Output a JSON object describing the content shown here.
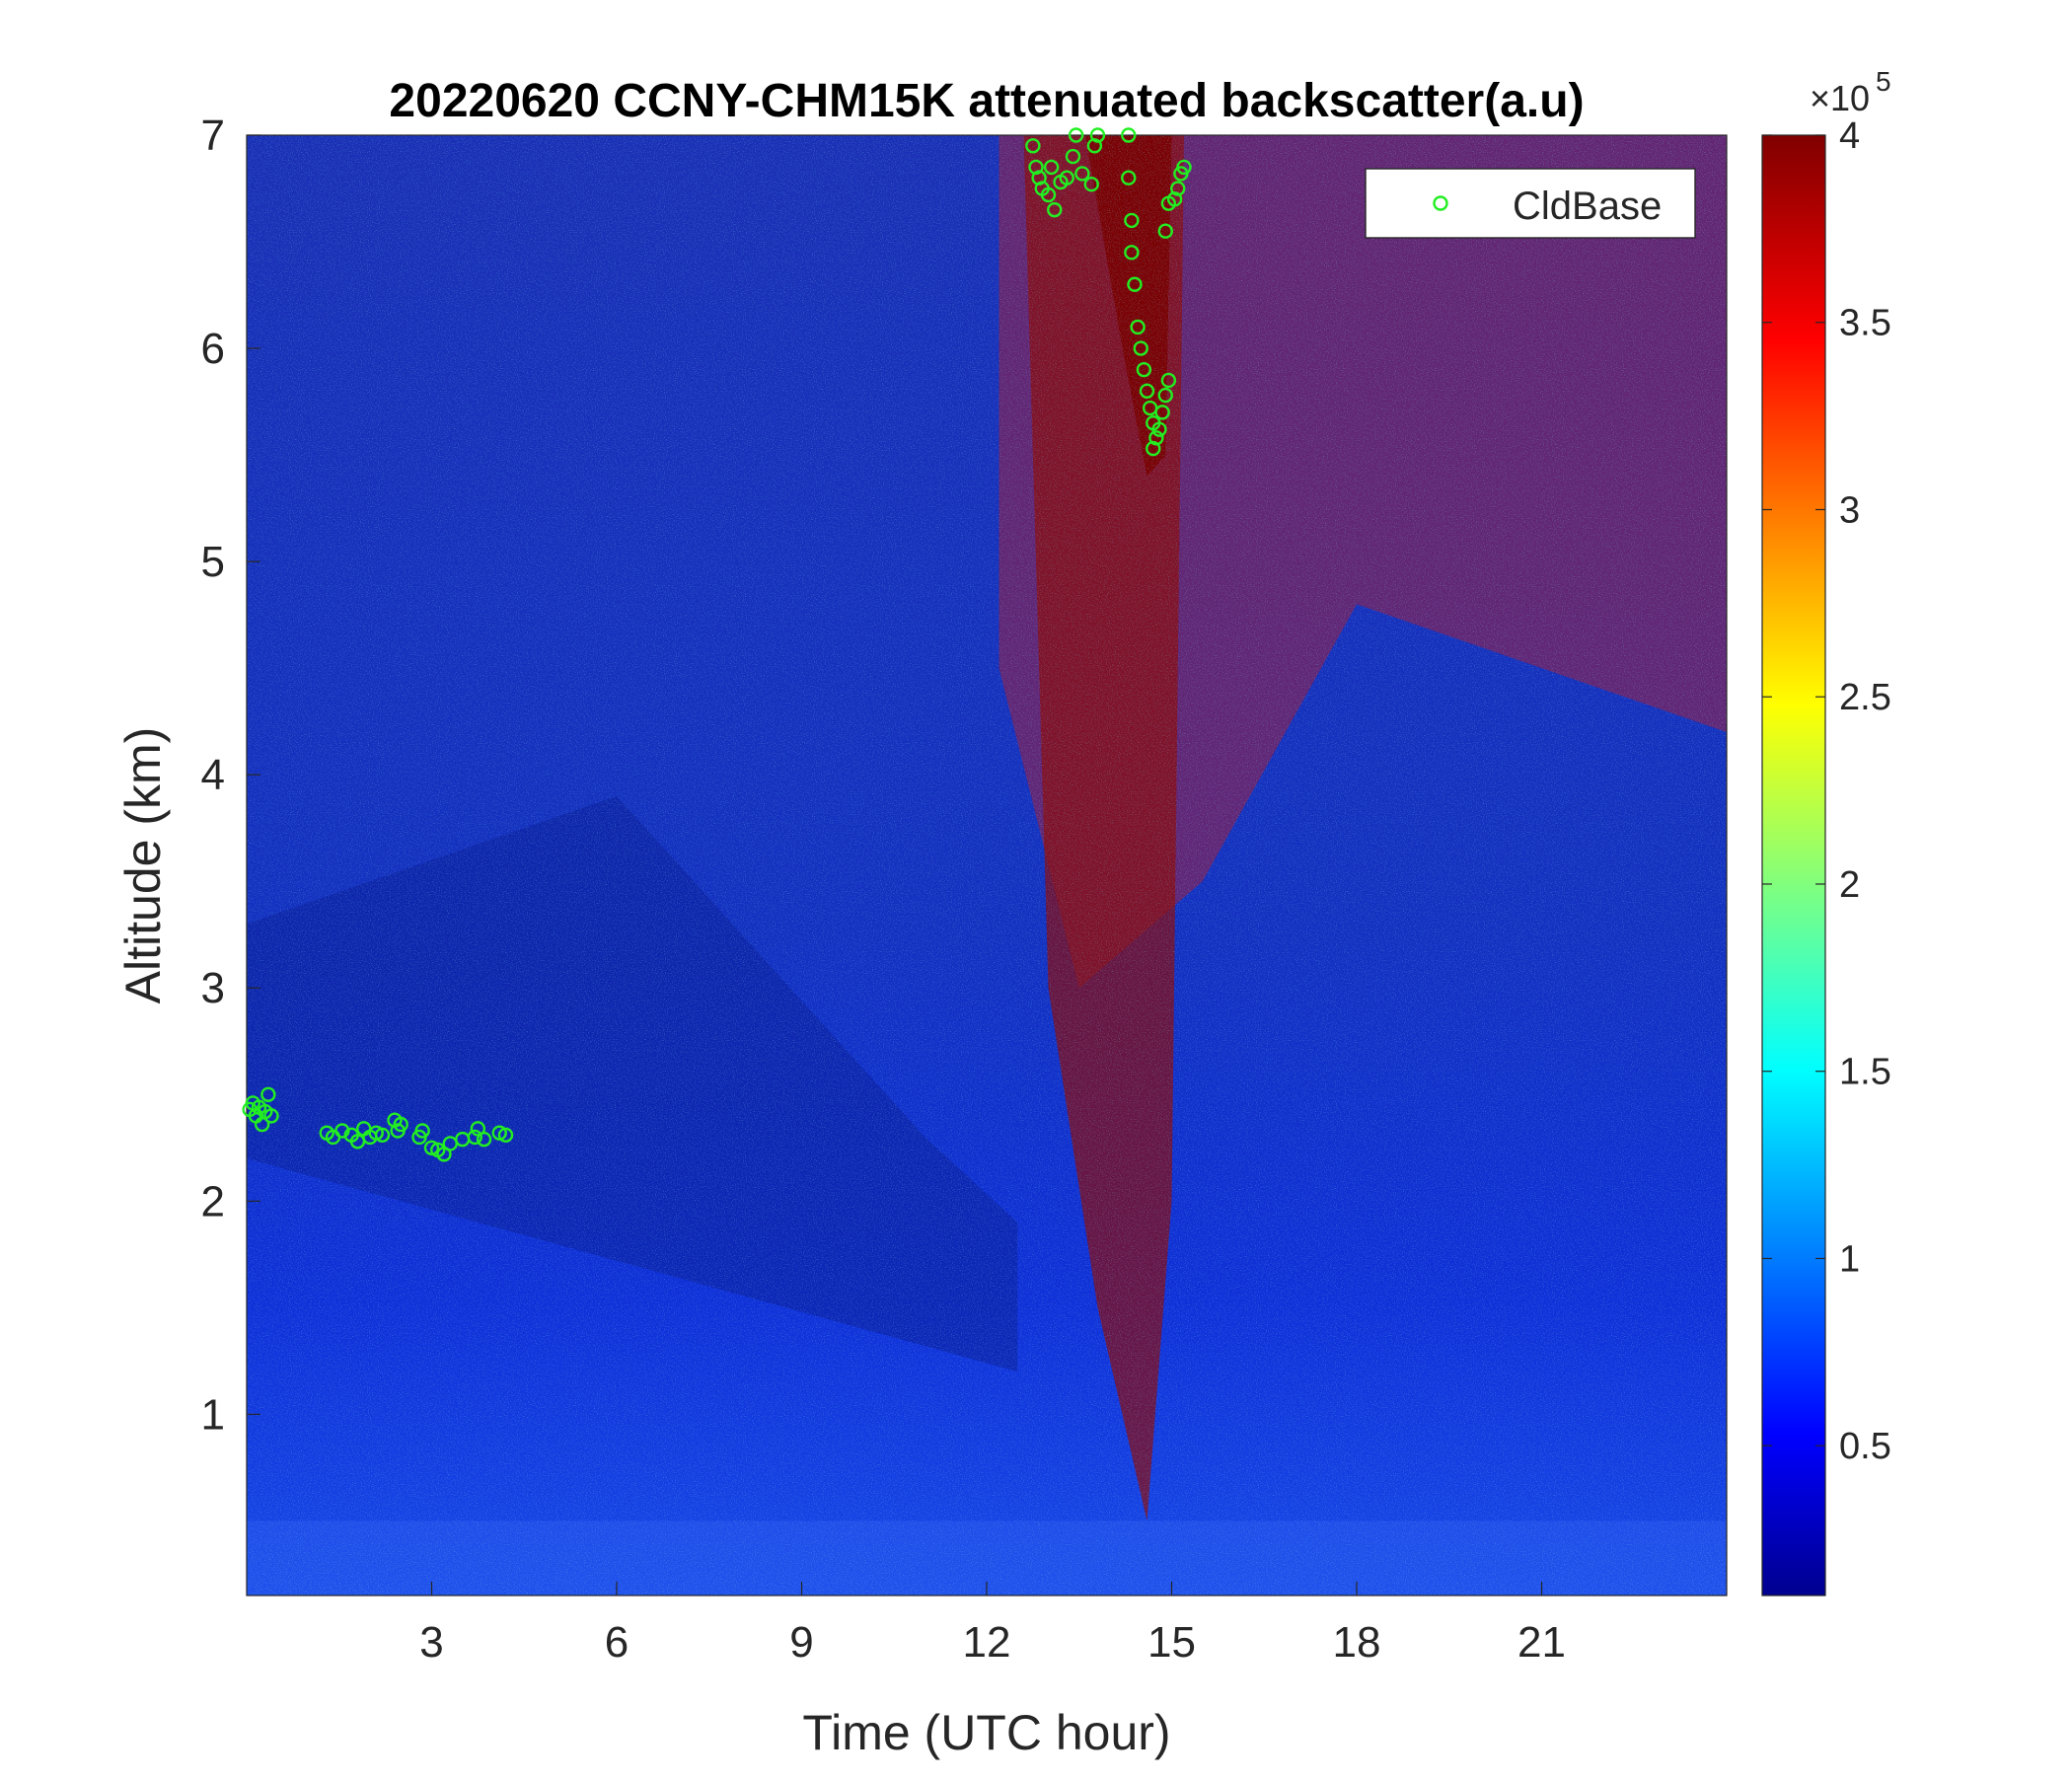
{
  "chart_data": {
    "type": "heatmap",
    "title": "20220620 CCNY-CHM15K attenuated backscatter(a.u)",
    "xlabel": "Time (UTC hour)",
    "ylabel": "Altitude (km)",
    "xlim": [
      0,
      24
    ],
    "ylim": [
      0.15,
      7
    ],
    "xticks": [
      3,
      6,
      9,
      12,
      15,
      18,
      21
    ],
    "yticks": [
      1,
      2,
      3,
      4,
      5,
      6,
      7
    ],
    "colorbar": {
      "colormap": "jet",
      "lim": [
        0.1,
        4
      ],
      "ticks": [
        0.5,
        1,
        1.5,
        2,
        2.5,
        3,
        3.5,
        4
      ],
      "exponent_label": "×10",
      "exponent": "5"
    },
    "legend": {
      "location": "top-right",
      "entries": [
        "CldBase"
      ]
    },
    "series": [
      {
        "name": "CldBase",
        "marker": "circle",
        "color": "#22ee22",
        "points": [
          {
            "x": 0.05,
            "y": 2.43
          },
          {
            "x": 0.1,
            "y": 2.46
          },
          {
            "x": 0.15,
            "y": 2.4
          },
          {
            "x": 0.2,
            "y": 2.44
          },
          {
            "x": 0.25,
            "y": 2.36
          },
          {
            "x": 0.3,
            "y": 2.42
          },
          {
            "x": 0.35,
            "y": 2.5
          },
          {
            "x": 0.4,
            "y": 2.4
          },
          {
            "x": 1.3,
            "y": 2.32
          },
          {
            "x": 1.4,
            "y": 2.3
          },
          {
            "x": 1.55,
            "y": 2.33
          },
          {
            "x": 1.7,
            "y": 2.31
          },
          {
            "x": 1.8,
            "y": 2.28
          },
          {
            "x": 1.9,
            "y": 2.34
          },
          {
            "x": 2.0,
            "y": 2.3
          },
          {
            "x": 2.1,
            "y": 2.32
          },
          {
            "x": 2.2,
            "y": 2.31
          },
          {
            "x": 2.4,
            "y": 2.38
          },
          {
            "x": 2.45,
            "y": 2.33
          },
          {
            "x": 2.5,
            "y": 2.36
          },
          {
            "x": 2.8,
            "y": 2.3
          },
          {
            "x": 2.85,
            "y": 2.33
          },
          {
            "x": 3.0,
            "y": 2.25
          },
          {
            "x": 3.1,
            "y": 2.24
          },
          {
            "x": 3.2,
            "y": 2.22
          },
          {
            "x": 3.3,
            "y": 2.27
          },
          {
            "x": 3.5,
            "y": 2.29
          },
          {
            "x": 3.7,
            "y": 2.3
          },
          {
            "x": 3.75,
            "y": 2.34
          },
          {
            "x": 3.85,
            "y": 2.29
          },
          {
            "x": 4.1,
            "y": 2.32
          },
          {
            "x": 4.2,
            "y": 2.31
          },
          {
            "x": 12.75,
            "y": 6.95
          },
          {
            "x": 12.8,
            "y": 6.85
          },
          {
            "x": 12.85,
            "y": 6.8
          },
          {
            "x": 12.9,
            "y": 6.75
          },
          {
            "x": 13.0,
            "y": 6.72
          },
          {
            "x": 13.05,
            "y": 6.85
          },
          {
            "x": 13.1,
            "y": 6.65
          },
          {
            "x": 13.2,
            "y": 6.78
          },
          {
            "x": 13.3,
            "y": 6.8
          },
          {
            "x": 13.4,
            "y": 6.9
          },
          {
            "x": 13.45,
            "y": 7.0
          },
          {
            "x": 13.55,
            "y": 6.82
          },
          {
            "x": 13.7,
            "y": 6.77
          },
          {
            "x": 13.75,
            "y": 6.95
          },
          {
            "x": 13.8,
            "y": 7.0
          },
          {
            "x": 14.3,
            "y": 7.0
          },
          {
            "x": 14.3,
            "y": 6.8
          },
          {
            "x": 14.35,
            "y": 6.6
          },
          {
            "x": 14.35,
            "y": 6.45
          },
          {
            "x": 14.4,
            "y": 6.3
          },
          {
            "x": 14.45,
            "y": 6.1
          },
          {
            "x": 14.5,
            "y": 6.0
          },
          {
            "x": 14.55,
            "y": 5.9
          },
          {
            "x": 14.6,
            "y": 5.8
          },
          {
            "x": 14.65,
            "y": 5.72
          },
          {
            "x": 14.7,
            "y": 5.65
          },
          {
            "x": 14.75,
            "y": 5.58
          },
          {
            "x": 14.7,
            "y": 5.53
          },
          {
            "x": 14.8,
            "y": 5.62
          },
          {
            "x": 14.85,
            "y": 5.7
          },
          {
            "x": 14.9,
            "y": 5.78
          },
          {
            "x": 14.95,
            "y": 5.85
          },
          {
            "x": 14.9,
            "y": 6.55
          },
          {
            "x": 14.95,
            "y": 6.68
          },
          {
            "x": 15.05,
            "y": 6.7
          },
          {
            "x": 15.1,
            "y": 6.75
          },
          {
            "x": 15.15,
            "y": 6.82
          },
          {
            "x": 15.2,
            "y": 6.85
          }
        ]
      }
    ]
  }
}
